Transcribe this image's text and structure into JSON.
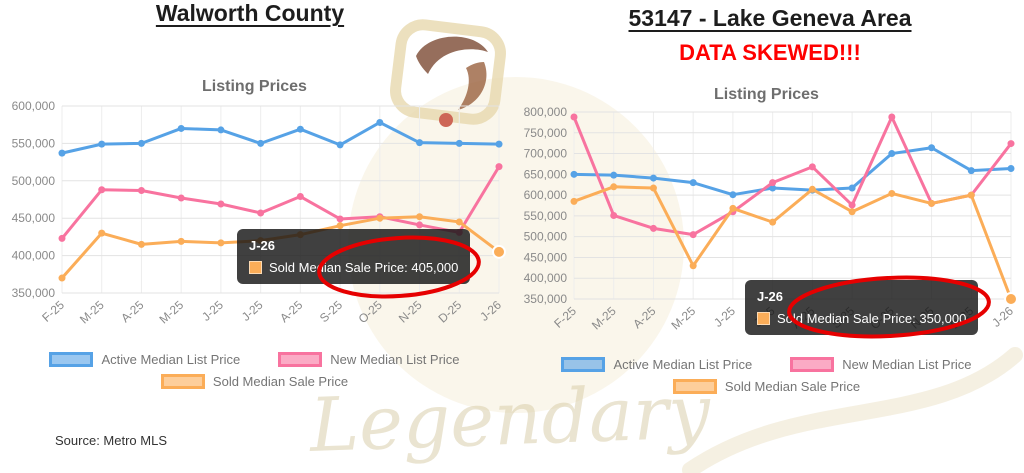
{
  "watermark": {
    "text": "Legendary"
  },
  "annotation_color": "#e60000",
  "left_panel": {
    "title": "Walworth County",
    "source": "Source: Metro MLS",
    "tooltip": {
      "title": "J-26",
      "text": "Sold Median Sale Price: 405,000"
    }
  },
  "right_panel": {
    "title": "53147 - Lake Geneva Area",
    "warning": "DATA SKEWED!!!",
    "warning_color": "#ff0000",
    "tooltip": {
      "title": "J-26",
      "text": "Sold Median Sale Price: 350,000"
    }
  },
  "chart_data": [
    {
      "type": "line",
      "title": "Listing Prices",
      "categories": [
        "F-25",
        "M-25",
        "A-25",
        "M-25",
        "J-25",
        "J-25",
        "A-25",
        "S-25",
        "O-25",
        "N-25",
        "D-25",
        "J-26"
      ],
      "ylim": [
        350000,
        600000
      ],
      "ytick_step": 50000,
      "grid": true,
      "legend_position": "bottom",
      "series": [
        {
          "name": "Active Median List Price",
          "color": "#56a2e6",
          "values": [
            537000,
            549000,
            550000,
            570000,
            568000,
            550000,
            569000,
            548000,
            578000,
            551000,
            550000,
            549000
          ]
        },
        {
          "name": "New Median List Price",
          "color": "#f8739f",
          "values": [
            423000,
            488000,
            487000,
            477000,
            469000,
            457000,
            479000,
            449000,
            452000,
            441000,
            431000,
            519000
          ]
        },
        {
          "name": "Sold Median Sale Price",
          "color": "#fbad58",
          "values": [
            370000,
            430000,
            415000,
            419000,
            417000,
            420000,
            428000,
            440000,
            450000,
            452000,
            445000,
            405000
          ]
        }
      ],
      "highlight": {
        "series": 2,
        "index": 11
      }
    },
    {
      "type": "line",
      "title": "Listing Prices",
      "categories": [
        "F-25",
        "M-25",
        "A-25",
        "M-25",
        "J-25",
        "J-25",
        "A-25",
        "S-25",
        "O-25",
        "N-25",
        "D-25",
        "J-26"
      ],
      "ylim": [
        350000,
        800000
      ],
      "ytick_step": 50000,
      "grid": true,
      "legend_position": "bottom",
      "series": [
        {
          "name": "Active Median List Price",
          "color": "#56a2e6",
          "values": [
            650000,
            648000,
            641000,
            630000,
            601000,
            617000,
            612000,
            617000,
            700000,
            714000,
            659000,
            664000
          ]
        },
        {
          "name": "New Median List Price",
          "color": "#f8739f",
          "values": [
            788000,
            551000,
            520000,
            505000,
            560000,
            630000,
            668000,
            576000,
            788000,
            580000,
            600000,
            724000
          ]
        },
        {
          "name": "Sold Median Sale Price",
          "color": "#fbad58",
          "values": [
            585000,
            620000,
            617000,
            430000,
            568000,
            535000,
            614000,
            560000,
            604000,
            580000,
            600000,
            350000
          ]
        }
      ],
      "highlight": {
        "series": 2,
        "index": 11
      }
    }
  ]
}
